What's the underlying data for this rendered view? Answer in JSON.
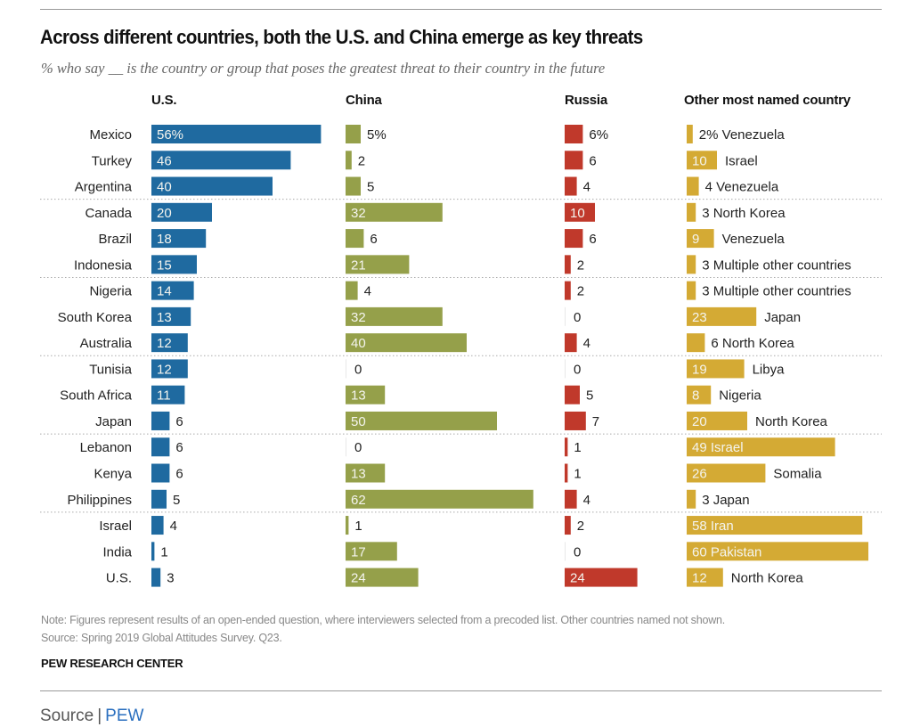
{
  "chart_data": {
    "type": "bar",
    "title": "Across different countries, both the U.S. and China emerge as key threats",
    "subtitle": "% who say __ is the country or group that poses the greatest threat to their country in the future",
    "xlabel": "",
    "ylabel": "",
    "xlim": [
      0,
      100
    ],
    "grid": false,
    "legend": "none",
    "categories": [
      "Mexico",
      "Turkey",
      "Argentina",
      "Canada",
      "Brazil",
      "Indonesia",
      "Nigeria",
      "South Korea",
      "Australia",
      "Tunisia",
      "South Africa",
      "Japan",
      "Lebanon",
      "Kenya",
      "Philippines",
      "Israel",
      "India",
      "U.S."
    ],
    "group_separators_after": [
      "Argentina",
      "Indonesia",
      "Australia",
      "Japan",
      "Philippines"
    ],
    "series": [
      {
        "name": "U.S.",
        "color": "#1f6aa0",
        "values": [
          56,
          46,
          40,
          20,
          18,
          15,
          14,
          13,
          12,
          12,
          11,
          6,
          6,
          6,
          5,
          4,
          1,
          3
        ]
      },
      {
        "name": "China",
        "color": "#95a04a",
        "values": [
          5,
          2,
          5,
          32,
          6,
          21,
          4,
          32,
          40,
          0,
          13,
          50,
          0,
          13,
          62,
          1,
          17,
          24
        ]
      },
      {
        "name": "Russia",
        "color": "#c0392b",
        "values": [
          6,
          6,
          4,
          10,
          6,
          2,
          2,
          0,
          4,
          0,
          5,
          7,
          1,
          1,
          4,
          2,
          0,
          24
        ]
      },
      {
        "name": "Other most named country",
        "color": "#d4aa34",
        "values": [
          2,
          10,
          4,
          3,
          9,
          3,
          3,
          23,
          6,
          19,
          8,
          20,
          49,
          26,
          3,
          58,
          60,
          12
        ],
        "labels": [
          "Venezuela",
          "Israel",
          "Venezuela",
          "North Korea",
          "Venezuela",
          "Multiple other countries",
          "Multiple other countries",
          "Japan",
          "North Korea",
          "Libya",
          "Nigeria",
          "North Korea",
          "Israel",
          "Somalia",
          "Japan",
          "Iran",
          "Pakistan",
          "North Korea"
        ]
      }
    ],
    "first_row_suffix": "%"
  },
  "notes": {
    "note": "Note: Figures represent results of an open-ended question, where interviewers selected from a precoded list. Other countries named not shown.",
    "source": "Source: Spring 2019 Global Attitudes Survey. Q23.",
    "brand": "PEW RESEARCH CENTER"
  },
  "footer": {
    "label": "Source",
    "separator": "|",
    "link_text": "PEW"
  }
}
